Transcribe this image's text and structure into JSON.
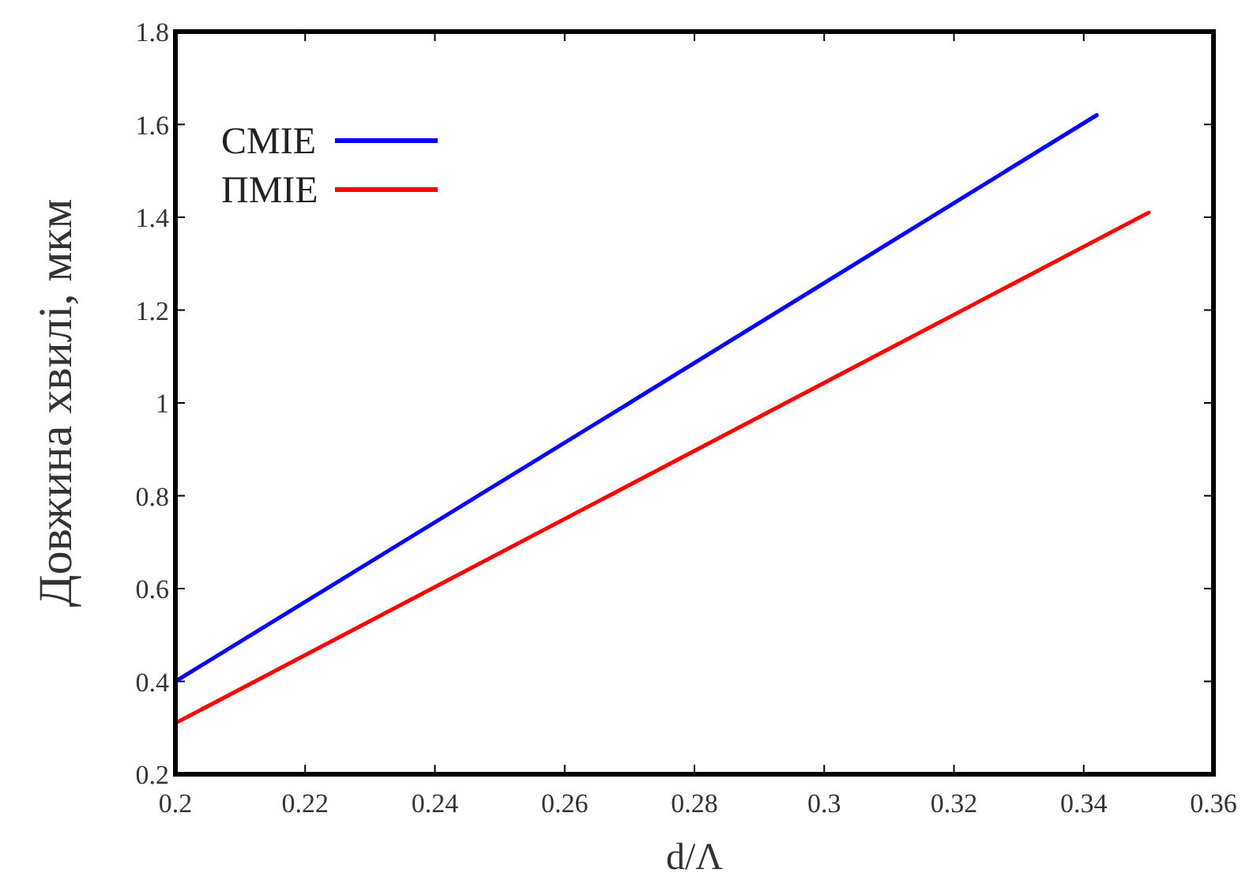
{
  "chart_data": {
    "type": "line",
    "xlabel": "d/Λ",
    "ylabel": "Довжина хвилі, мкм",
    "xlim": [
      0.2,
      0.36
    ],
    "xticks": [
      0.2,
      0.22,
      0.24,
      0.26,
      0.28,
      0.3,
      0.32,
      0.34,
      0.36
    ],
    "ylim": [
      0.2,
      1.8
    ],
    "yticks": [
      0.2,
      0.4,
      0.6,
      0.8,
      1,
      1.2,
      1.4,
      1.6,
      1.8
    ],
    "legend": "top left",
    "grid": false,
    "series": [
      {
        "name": "СМІЕ",
        "color": "#0000ff",
        "x": [
          0.2,
          0.27,
          0.342
        ],
        "values": [
          0.4,
          1.0,
          1.62
        ]
      },
      {
        "name": "ПМІЕ",
        "color": "#ff0000",
        "x": [
          0.2,
          0.275,
          0.35
        ],
        "values": [
          0.31,
          0.86,
          1.41
        ]
      }
    ]
  }
}
